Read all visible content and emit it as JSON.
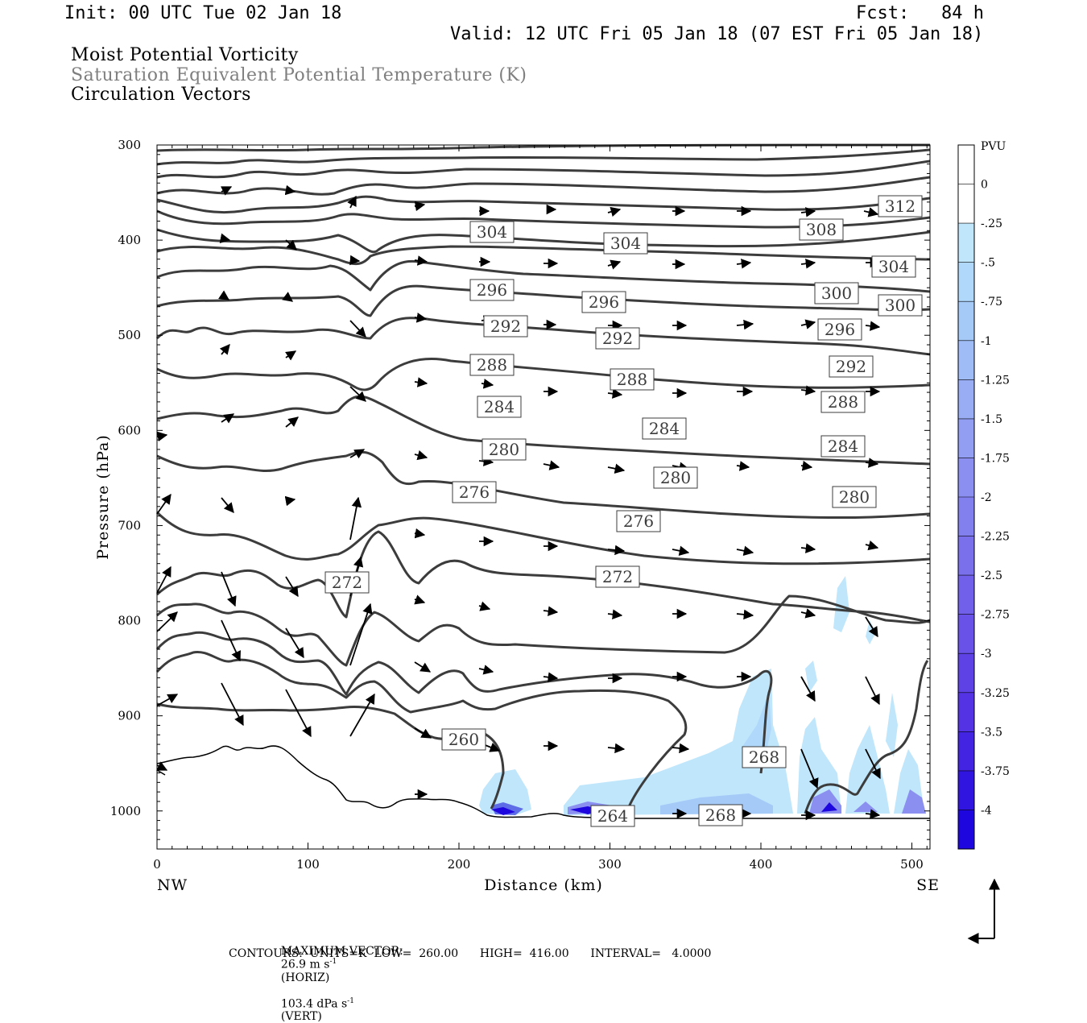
{
  "header": {
    "init": "Init: 00 UTC Tue 02 Jan 18",
    "fcst": "Fcst:   84 h",
    "valid": "Valid: 12 UTC Fri 05 Jan 18 (07 EST Fri 05 Jan 18)"
  },
  "fields": {
    "line1": "Moist Potential Vorticity",
    "line2": "Saturation Equivalent Potential Temperature (K)",
    "line3": "Circulation Vectors"
  },
  "footer": {
    "max_vector_label": "MAXIMUM VECTOR:",
    "max_horiz": "26.9 m s",
    "horiz_tag": "(HORIZ)",
    "max_vert": "103.4 dPa s",
    "vert_tag": "(VERT)",
    "exp": "-1",
    "contours": "CONTOURS:  UNITS=K  LOW=  260.00      HIGH=  416.00      INTERVAL=   4.0000"
  },
  "chart_data": {
    "type": "cross-section",
    "xlabel": "Distance (km)",
    "ylabel": "Pressure (hPa)",
    "x_ticks": [
      0,
      100,
      200,
      300,
      400,
      500
    ],
    "x_tick_labels": [
      "0",
      "100",
      "200",
      "300",
      "400",
      "500"
    ],
    "xlim": [
      0,
      512
    ],
    "y_ticks": [
      300,
      400,
      500,
      600,
      700,
      800,
      900,
      1000
    ],
    "y_tick_labels": [
      "300",
      "400",
      "500",
      "600",
      "700",
      "800",
      "900",
      "1000"
    ],
    "ylim": [
      300,
      1040
    ],
    "left_end": "NW",
    "right_end": "SE",
    "colorbar": {
      "unit": "PVU",
      "labels": [
        "0",
        "-.25",
        "-.5",
        "-.75",
        "-1",
        "-1.25",
        "-1.5",
        "-1.75",
        "-2",
        "-2.25",
        "-2.5",
        "-2.75",
        "-3",
        "-3.25",
        "-3.5",
        "-3.75",
        "-4"
      ],
      "colors": [
        "#ffffff",
        "#ffffff",
        "#bfe6fb",
        "#afd8fa",
        "#a6caf8",
        "#9fbcf6",
        "#98adf4",
        "#919ef2",
        "#8a8ff0",
        "#8280ee",
        "#7a70ec",
        "#7161ea",
        "#6852e8",
        "#5e42e6",
        "#5433e4",
        "#4224e2",
        "#3015e0",
        "#1e06de"
      ]
    },
    "contour_label_values": [
      "312",
      "304",
      "304",
      "308",
      "304",
      "296",
      "296",
      "300",
      "300",
      "292",
      "292",
      "296",
      "288",
      "288",
      "292",
      "288",
      "284",
      "284",
      "284",
      "280",
      "280",
      "280",
      "276",
      "276",
      "272",
      "272",
      "260",
      "268",
      "264",
      "268"
    ]
  }
}
